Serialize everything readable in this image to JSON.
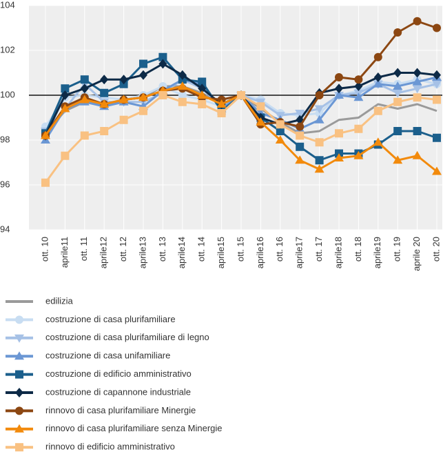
{
  "chart_data": {
    "type": "line",
    "categories": [
      "ott. 10",
      "aprile11",
      "ott. 11",
      "aprile12",
      "ott. 12",
      "aprile13",
      "ott. 13",
      "aprile14",
      "ott. 14",
      "aprile15",
      "ott. 15",
      "aprile16",
      "ott. 16",
      "aprile17",
      "ott. 17",
      "aprile18",
      "ott. 18",
      "aprile19",
      "ott. 19",
      "aprile 20",
      "ott. 20"
    ],
    "ylim": [
      94,
      104
    ],
    "yticks": [
      94,
      96,
      98,
      100,
      102,
      104
    ],
    "grid": true,
    "legend": "bottom",
    "series": [
      {
        "name": "edilizia",
        "color": "#9a9a9a",
        "marker": "none",
        "values": [
          98.3,
          99.3,
          99.7,
          99.6,
          99.8,
          99.9,
          100.4,
          100.4,
          100.1,
          99.6,
          100,
          99.4,
          98.8,
          98.3,
          98.4,
          98.9,
          99.0,
          99.6,
          99.4,
          99.6,
          99.3
        ]
      },
      {
        "name": "costruzione di casa plurifamiliare",
        "color": "#c8ddf2",
        "marker": "circle",
        "values": [
          98.6,
          99.9,
          100.0,
          99.9,
          99.8,
          100.0,
          100.4,
          100.0,
          99.8,
          99.5,
          100,
          99.8,
          99.2,
          99.1,
          99.2,
          100.0,
          100.2,
          100.6,
          100.5,
          100.7,
          100.5
        ]
      },
      {
        "name": "costruzione di casa plurifamiliare di legno",
        "color": "#a6c1e6",
        "marker": "tridown",
        "values": [
          98.4,
          99.4,
          100.5,
          99.7,
          99.7,
          99.7,
          100.1,
          100.7,
          100.3,
          99.5,
          100,
          99.7,
          99.1,
          99.2,
          99.4,
          100.0,
          100.1,
          100.5,
          100.1,
          100.3,
          100.5
        ]
      },
      {
        "name": "costruzione di casa unifamiliare",
        "color": "#6b97d4",
        "marker": "triup",
        "values": [
          98.0,
          99.4,
          99.7,
          99.5,
          99.7,
          99.5,
          100.2,
          100.7,
          100.5,
          99.4,
          100,
          99.2,
          98.9,
          98.5,
          98.9,
          100.0,
          99.9,
          100.5,
          100.4,
          100.6,
          100.8
        ]
      },
      {
        "name": "costruzione di edificio amministrativo",
        "color": "#1b5f8c",
        "marker": "square",
        "values": [
          98.3,
          100.3,
          100.7,
          100.1,
          100.5,
          101.4,
          101.7,
          100.7,
          100.6,
          99.3,
          100,
          99.0,
          98.4,
          97.7,
          97.1,
          97.4,
          97.4,
          97.8,
          98.4,
          98.4,
          98.1
        ]
      },
      {
        "name": "costruzione di capannone industriale",
        "color": "#0d2a47",
        "marker": "diamond",
        "values": [
          98.2,
          100.0,
          100.3,
          100.7,
          100.7,
          100.9,
          101.4,
          100.9,
          100.3,
          99.6,
          100,
          99.0,
          98.7,
          98.9,
          100.1,
          100.3,
          100.4,
          100.8,
          101.0,
          101.0,
          100.9
        ]
      },
      {
        "name": "rinnovo di casa plurifamiliare Minergie",
        "color": "#8c4712",
        "marker": "circle",
        "values": [
          98.2,
          99.5,
          99.9,
          99.6,
          99.8,
          99.9,
          100.2,
          100.3,
          99.9,
          99.8,
          100,
          98.7,
          98.8,
          98.6,
          100.0,
          100.8,
          100.7,
          101.7,
          102.8,
          103.3,
          103.0
        ]
      },
      {
        "name": "rinnovo di casa plurifamiliare senza Minergie",
        "color": "#f28a0c",
        "marker": "triup",
        "values": [
          98.2,
          99.4,
          99.8,
          99.6,
          99.8,
          99.9,
          100.2,
          100.4,
          100.0,
          99.6,
          100,
          98.8,
          98.0,
          97.1,
          96.7,
          97.2,
          97.3,
          97.9,
          97.1,
          97.3,
          96.6
        ]
      },
      {
        "name": "rinnovo di edificio amministrativo",
        "color": "#f9c182",
        "marker": "square",
        "values": [
          96.1,
          97.3,
          98.2,
          98.4,
          98.9,
          99.3,
          100.0,
          99.7,
          99.6,
          99.2,
          100,
          99.5,
          98.7,
          98.2,
          97.9,
          98.3,
          98.5,
          99.3,
          99.7,
          99.9,
          99.8
        ]
      }
    ]
  }
}
